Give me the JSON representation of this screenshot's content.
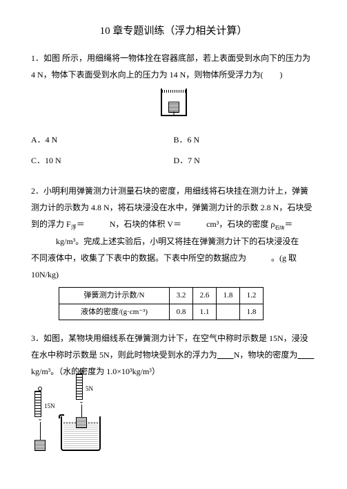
{
  "title": "10 章专题训练（浮力相关计算）",
  "q1": {
    "text_l1": "1．如图 所示，用细绳将一物体拴在容器底部，若上表面受到水向下的压力为",
    "text_l2": "4 N，物体下表面受到水向上的压力为 14 N，则物体所受浮力为(　　)",
    "options": {
      "a": "A．4 N",
      "b": "B．6 N",
      "c": "C．10 N",
      "d": "D．7 N"
    }
  },
  "q2": {
    "l1": "2．小明利用弹簧测力计测量石块的密度，用细线将石块挂在测力计上，弹簧",
    "l2_a": "测力计的示数为 4.8 N，将石块浸没在水中，弹簧测力计的示数 2.8 N，石块受",
    "l3_a": "到的浮力 F",
    "l3_sub1": "浮",
    "l3_b": "＝",
    "l3_c": "N，石块的体积 V＝",
    "l3_d": "cm³，石块的密度 ρ",
    "l3_sub2": "石块",
    "l3_e": "＝",
    "l4": "kg/m³。完成上述实验后，小明又将挂在弹簧测力计下的石块浸没在",
    "l5_a": "不同液体中，收集了下表中的数据。下表中所空的数据应为",
    "l5_b": "。(g 取",
    "l6": "10N/kg)",
    "table": {
      "row1_label": "弹簧测力计示数/N",
      "row1_vals": [
        "3.2",
        "2.6",
        "1.8",
        "1.2"
      ],
      "row2_label": "液体的密度/(g·cm⁻³)",
      "row2_vals": [
        "0.8",
        "1.1",
        "",
        "1.8"
      ]
    }
  },
  "q3": {
    "l1": "3．如图，某物块用细线系在弹簧测力计下，在空气中称时示数是 15N，浸没",
    "l2_a": "在水中称时示数是 5N，则此时物块受到水的浮力为",
    "l2_b": "N，物块的密度为",
    "l3": "kg/m³。（水的密度为 1.0×10³kg/m³）",
    "label15": "15N",
    "label5": "5N"
  }
}
